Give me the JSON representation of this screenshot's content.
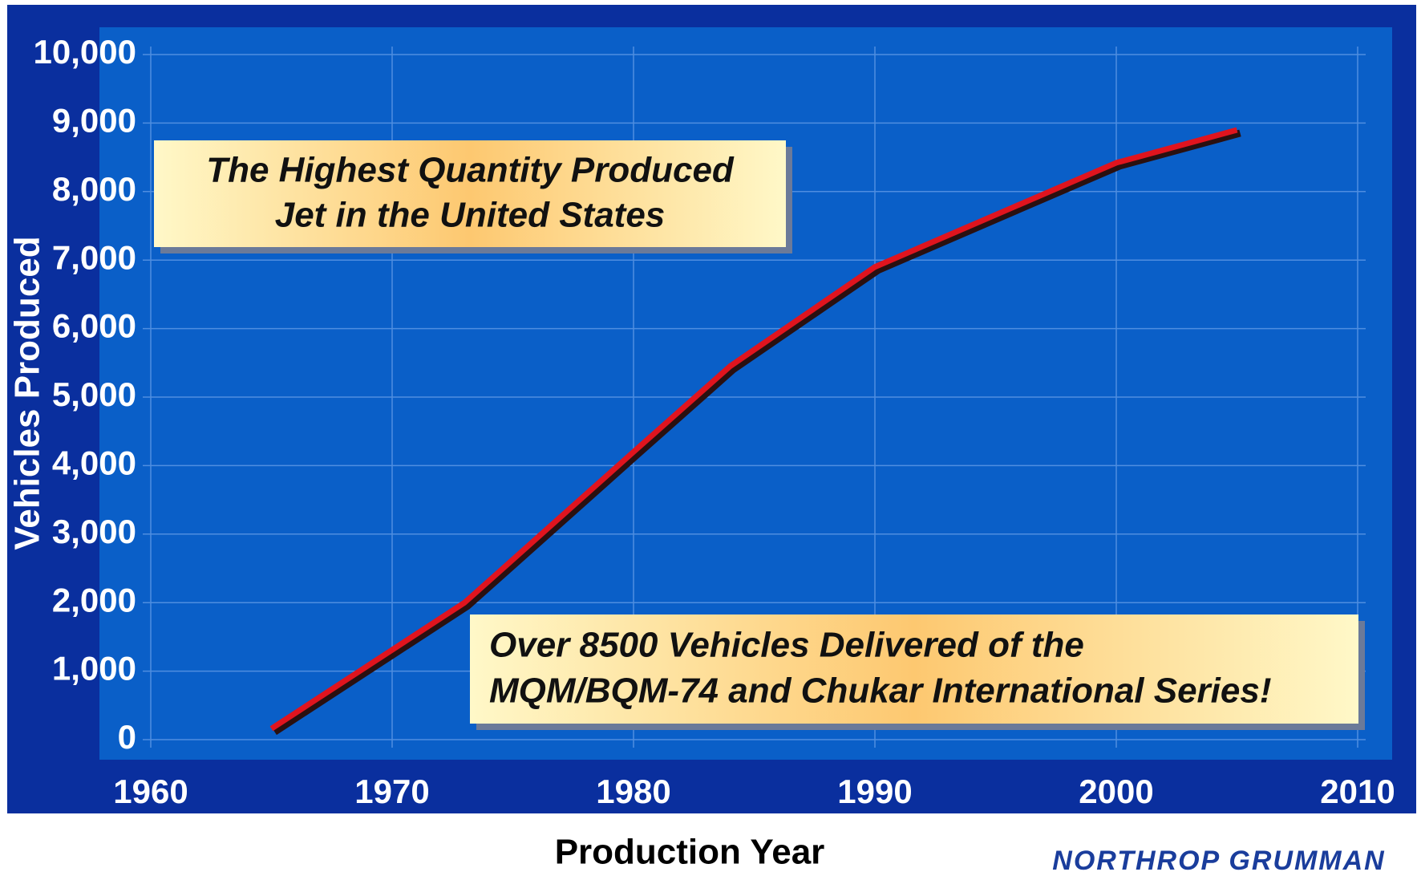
{
  "chart_data": {
    "type": "line",
    "x_label": "Production Year",
    "y_label": "Vehicles Produced",
    "x": [
      1965,
      1973,
      1980,
      1984,
      1990,
      2000,
      2005
    ],
    "series": [
      {
        "name": "Vehicles Produced",
        "color": "#e0141e",
        "values": [
          160,
          2000,
          4200,
          5450,
          6900,
          8420,
          8900
        ]
      }
    ],
    "xlim": [
      1960,
      2010
    ],
    "xticks": [
      1960,
      1970,
      1980,
      1990,
      2000,
      2010
    ],
    "ylim": [
      0,
      10000
    ],
    "yticks": [
      0,
      {
        "value": 1000,
        "label": "1,000"
      },
      {
        "value": 2000,
        "label": "2,000"
      },
      {
        "value": 3000,
        "label": "3,000"
      },
      {
        "value": 4000,
        "label": "4,000"
      },
      {
        "value": 5000,
        "label": "5,000"
      },
      {
        "value": 6000,
        "label": "6,000"
      },
      {
        "value": 7000,
        "label": "7,000"
      },
      {
        "value": 8000,
        "label": "8,000"
      },
      {
        "value": 9000,
        "label": "9,000"
      },
      {
        "value": 10000,
        "label": "10,000"
      }
    ],
    "grid": true,
    "annotations": [
      {
        "lines": [
          "The Highest Quantity Produced",
          "Jet in the United States"
        ]
      },
      {
        "lines": [
          "Over 8500 Vehicles Delivered of the",
          "MQM/BQM-74 and Chukar International Series!"
        ]
      }
    ],
    "logo": "NORTHROP GRUMMAN"
  }
}
